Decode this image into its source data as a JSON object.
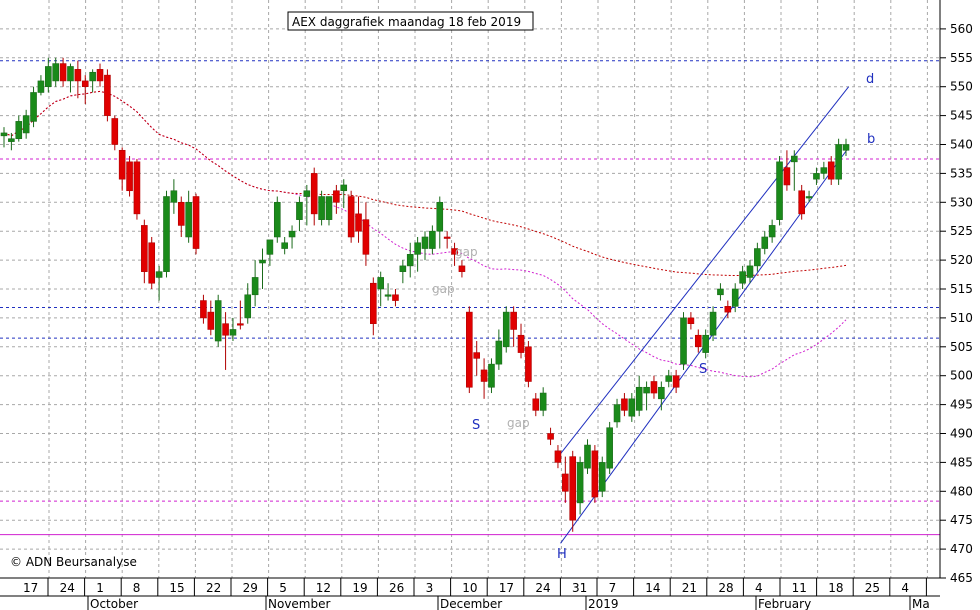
{
  "chart_data": {
    "type": "candlestick",
    "title": "AEX daggrafiek maandag 18 feb 2019",
    "copyright": "© ADN Beursanalyse",
    "ylim": [
      465,
      565
    ],
    "y_ticks": [
      465,
      470,
      475,
      480,
      485,
      490,
      495,
      500,
      505,
      510,
      515,
      520,
      525,
      530,
      535,
      540,
      545,
      550,
      555,
      560
    ],
    "x_day_ticks": [
      "17",
      "24",
      "1",
      "8",
      "15",
      "22",
      "29",
      "5",
      "12",
      "19",
      "26",
      "3",
      "10",
      "17",
      "24",
      "31",
      "7",
      "14",
      "21",
      "28",
      "4",
      "11",
      "18",
      "25",
      "4"
    ],
    "month_labels": [
      "October",
      "November",
      "December",
      "2019",
      "February",
      "Ma"
    ],
    "colors": {
      "up": "#1a8a1a",
      "down": "#e00000",
      "channel": "#1f2fbf",
      "ma_short": "#d020d0",
      "ma_long": "#c00000",
      "support": "#2030c0",
      "grid": "#a8a8a8"
    },
    "candles": [
      {
        "o": 541.5,
        "h": 543,
        "l": 539.5,
        "c": 542,
        "up": true
      },
      {
        "o": 540.5,
        "h": 542,
        "l": 539,
        "c": 541,
        "up": true
      },
      {
        "o": 541,
        "h": 545,
        "l": 540.5,
        "c": 544,
        "up": true
      },
      {
        "o": 542,
        "h": 546,
        "l": 541,
        "c": 545,
        "up": true
      },
      {
        "o": 544,
        "h": 550,
        "l": 543,
        "c": 549,
        "up": true
      },
      {
        "o": 549,
        "h": 552,
        "l": 548.5,
        "c": 551,
        "up": true
      },
      {
        "o": 550,
        "h": 555,
        "l": 549,
        "c": 553.5,
        "up": true
      },
      {
        "o": 551,
        "h": 555,
        "l": 550,
        "c": 554,
        "up": true
      },
      {
        "o": 554,
        "h": 555,
        "l": 550,
        "c": 551,
        "up": false
      },
      {
        "o": 551,
        "h": 554,
        "l": 549,
        "c": 553.5,
        "up": true
      },
      {
        "o": 553,
        "h": 554.5,
        "l": 548,
        "c": 551,
        "up": false
      },
      {
        "o": 551,
        "h": 552,
        "l": 547,
        "c": 550,
        "up": false
      },
      {
        "o": 551,
        "h": 553,
        "l": 549,
        "c": 552.5,
        "up": true
      },
      {
        "o": 553,
        "h": 554,
        "l": 550,
        "c": 551,
        "up": false
      },
      {
        "o": 552,
        "h": 553,
        "l": 544,
        "c": 545,
        "up": false
      },
      {
        "o": 544.5,
        "h": 545,
        "l": 539,
        "c": 540,
        "up": false
      },
      {
        "o": 539,
        "h": 539.5,
        "l": 532,
        "c": 534,
        "up": false
      },
      {
        "o": 537,
        "h": 538,
        "l": 531,
        "c": 532,
        "up": false
      },
      {
        "o": 537,
        "h": 537.5,
        "l": 527,
        "c": 528,
        "up": false
      },
      {
        "o": 526,
        "h": 527,
        "l": 516,
        "c": 518,
        "up": false
      },
      {
        "o": 523,
        "h": 524,
        "l": 515,
        "c": 516,
        "up": false
      },
      {
        "o": 518,
        "h": 519,
        "l": 513,
        "c": 517,
        "up": true
      },
      {
        "o": 518,
        "h": 532,
        "l": 517,
        "c": 531,
        "up": true
      },
      {
        "o": 530,
        "h": 534,
        "l": 528,
        "c": 532,
        "up": true
      },
      {
        "o": 530,
        "h": 531,
        "l": 524,
        "c": 526,
        "up": false
      },
      {
        "o": 524,
        "h": 532,
        "l": 523,
        "c": 530,
        "up": true
      },
      {
        "o": 531,
        "h": 531.5,
        "l": 521,
        "c": 522,
        "up": false
      },
      {
        "o": 513,
        "h": 514,
        "l": 509,
        "c": 510,
        "up": false
      },
      {
        "o": 511,
        "h": 513,
        "l": 507,
        "c": 508,
        "up": false
      },
      {
        "o": 506,
        "h": 514,
        "l": 505,
        "c": 513,
        "up": true
      },
      {
        "o": 509,
        "h": 511,
        "l": 501,
        "c": 507,
        "up": false
      },
      {
        "o": 507,
        "h": 510,
        "l": 506,
        "c": 508,
        "up": true
      },
      {
        "o": 509,
        "h": 513,
        "l": 508,
        "c": 509,
        "up": false
      },
      {
        "o": 514,
        "h": 516,
        "l": 509,
        "c": 510,
        "up": true
      },
      {
        "o": 514,
        "h": 520,
        "l": 512,
        "c": 517,
        "up": true
      },
      {
        "o": 520,
        "h": 522,
        "l": 515,
        "c": 519.5,
        "up": true
      },
      {
        "o": 521,
        "h": 523,
        "l": 519,
        "c": 523.5,
        "up": true
      },
      {
        "o": 524,
        "h": 531,
        "l": 523,
        "c": 530,
        "up": true
      },
      {
        "o": 522,
        "h": 524,
        "l": 521,
        "c": 523,
        "up": true
      },
      {
        "o": 524,
        "h": 526,
        "l": 522,
        "c": 525,
        "up": true
      },
      {
        "o": 527,
        "h": 531,
        "l": 525,
        "c": 530,
        "up": true
      },
      {
        "o": 531,
        "h": 533,
        "l": 526,
        "c": 532,
        "up": true
      },
      {
        "o": 535,
        "h": 536,
        "l": 526,
        "c": 528,
        "up": false
      },
      {
        "o": 531,
        "h": 532,
        "l": 526,
        "c": 527,
        "up": true
      },
      {
        "o": 527,
        "h": 530,
        "l": 526,
        "c": 531,
        "up": true
      },
      {
        "o": 532,
        "h": 533,
        "l": 528,
        "c": 530,
        "up": false
      },
      {
        "o": 532,
        "h": 534,
        "l": 529,
        "c": 533,
        "up": true
      },
      {
        "o": 531,
        "h": 532,
        "l": 523,
        "c": 524,
        "up": false
      },
      {
        "o": 528,
        "h": 531,
        "l": 523,
        "c": 525,
        "up": false
      },
      {
        "o": 527,
        "h": 530,
        "l": 519,
        "c": 521,
        "up": false
      },
      {
        "o": 516,
        "h": 517,
        "l": 507,
        "c": 509,
        "up": false
      },
      {
        "o": 515,
        "h": 518,
        "l": 512,
        "c": 517,
        "up": true
      },
      {
        "o": 514,
        "h": 516,
        "l": 513,
        "c": 514,
        "up": true
      },
      {
        "o": 513,
        "h": 515,
        "l": 512,
        "c": 514,
        "up": false
      },
      {
        "o": 518,
        "h": 520,
        "l": 516,
        "c": 519,
        "up": true
      },
      {
        "o": 519,
        "h": 523,
        "l": 517,
        "c": 521,
        "up": true
      },
      {
        "o": 521,
        "h": 524,
        "l": 518,
        "c": 523,
        "up": true
      },
      {
        "o": 524,
        "h": 525,
        "l": 520,
        "c": 522,
        "up": true
      },
      {
        "o": 522,
        "h": 526,
        "l": 521,
        "c": 525,
        "up": true
      },
      {
        "o": 530,
        "h": 531,
        "l": 522,
        "c": 525,
        "up": true
      },
      {
        "o": 524,
        "h": 525,
        "l": 522,
        "c": 524,
        "up": false
      },
      {
        "o": 522,
        "h": 523,
        "l": 519,
        "c": 521,
        "up": false
      },
      {
        "o": 519,
        "h": 520,
        "l": 517,
        "c": 518,
        "up": false
      },
      {
        "o": 511,
        "h": 512,
        "l": 497,
        "c": 498,
        "up": false
      },
      {
        "o": 504,
        "h": 506,
        "l": 500,
        "c": 503,
        "up": false
      },
      {
        "o": 499,
        "h": 503,
        "l": 496,
        "c": 501,
        "up": false
      },
      {
        "o": 498,
        "h": 503,
        "l": 497,
        "c": 502,
        "up": true
      },
      {
        "o": 502,
        "h": 508,
        "l": 501,
        "c": 506,
        "up": true
      },
      {
        "o": 505,
        "h": 512,
        "l": 504,
        "c": 511,
        "up": true
      },
      {
        "o": 511,
        "h": 512,
        "l": 505,
        "c": 508,
        "up": false
      },
      {
        "o": 507,
        "h": 509,
        "l": 503,
        "c": 504,
        "up": false
      },
      {
        "o": 505,
        "h": 506,
        "l": 498,
        "c": 499,
        "up": false
      },
      {
        "o": 496,
        "h": 497,
        "l": 493,
        "c": 494,
        "up": false
      },
      {
        "o": 494,
        "h": 498,
        "l": 493,
        "c": 497,
        "up": true
      },
      {
        "o": 490,
        "h": 491,
        "l": 488,
        "c": 489,
        "up": false
      },
      {
        "o": 487,
        "h": 488,
        "l": 484,
        "c": 485,
        "up": false
      },
      {
        "o": 483,
        "h": 486,
        "l": 478,
        "c": 480,
        "up": false
      },
      {
        "o": 486,
        "h": 487,
        "l": 473,
        "c": 475,
        "up": false
      },
      {
        "o": 478,
        "h": 486,
        "l": 476,
        "c": 485,
        "up": true
      },
      {
        "o": 484,
        "h": 489,
        "l": 483,
        "c": 488,
        "up": true
      },
      {
        "o": 487,
        "h": 488,
        "l": 478,
        "c": 479,
        "up": false
      },
      {
        "o": 480,
        "h": 486,
        "l": 479,
        "c": 485,
        "up": true
      },
      {
        "o": 484,
        "h": 492,
        "l": 483,
        "c": 491,
        "up": true
      },
      {
        "o": 492,
        "h": 496,
        "l": 491,
        "c": 495,
        "up": true
      },
      {
        "o": 496,
        "h": 497,
        "l": 493,
        "c": 494,
        "up": false
      },
      {
        "o": 493,
        "h": 497,
        "l": 492,
        "c": 496,
        "up": true
      },
      {
        "o": 494,
        "h": 500,
        "l": 493,
        "c": 498,
        "up": true
      },
      {
        "o": 497,
        "h": 499,
        "l": 494,
        "c": 498,
        "up": true
      },
      {
        "o": 499,
        "h": 500,
        "l": 496,
        "c": 497,
        "up": false
      },
      {
        "o": 496,
        "h": 499,
        "l": 494,
        "c": 498,
        "up": true
      },
      {
        "o": 499,
        "h": 501,
        "l": 498,
        "c": 500,
        "up": true
      },
      {
        "o": 500,
        "h": 501,
        "l": 497,
        "c": 498,
        "up": false
      },
      {
        "o": 502,
        "h": 511,
        "l": 501,
        "c": 510,
        "up": true
      },
      {
        "o": 510,
        "h": 511,
        "l": 508,
        "c": 509,
        "up": false
      },
      {
        "o": 507,
        "h": 508,
        "l": 504,
        "c": 505,
        "up": false
      },
      {
        "o": 504,
        "h": 508,
        "l": 503,
        "c": 507,
        "up": true
      },
      {
        "o": 507,
        "h": 512,
        "l": 506,
        "c": 511,
        "up": true
      },
      {
        "o": 514,
        "h": 516,
        "l": 513,
        "c": 515,
        "up": true
      },
      {
        "o": 511,
        "h": 513,
        "l": 510,
        "c": 512,
        "up": false
      },
      {
        "o": 512,
        "h": 516,
        "l": 511,
        "c": 515,
        "up": true
      },
      {
        "o": 516,
        "h": 519,
        "l": 515,
        "c": 518,
        "up": true
      },
      {
        "o": 517,
        "h": 520,
        "l": 516,
        "c": 519,
        "up": true
      },
      {
        "o": 519,
        "h": 523,
        "l": 518,
        "c": 522,
        "up": true
      },
      {
        "o": 522,
        "h": 525,
        "l": 521,
        "c": 524,
        "up": true
      },
      {
        "o": 524,
        "h": 527,
        "l": 523,
        "c": 526,
        "up": true
      },
      {
        "o": 527,
        "h": 538,
        "l": 526,
        "c": 537,
        "up": true
      },
      {
        "o": 536,
        "h": 539,
        "l": 532,
        "c": 533,
        "up": false
      },
      {
        "o": 537,
        "h": 539,
        "l": 532,
        "c": 538,
        "up": true
      },
      {
        "o": 532,
        "h": 533,
        "l": 527,
        "c": 528,
        "up": false
      },
      {
        "o": 531,
        "h": 532,
        "l": 530,
        "c": 531,
        "up": true
      },
      {
        "o": 534,
        "h": 536,
        "l": 533,
        "c": 535,
        "up": true
      },
      {
        "o": 535,
        "h": 537,
        "l": 534,
        "c": 536,
        "up": true
      },
      {
        "o": 537,
        "h": 538,
        "l": 533,
        "c": 534,
        "up": false
      },
      {
        "o": 534,
        "h": 541,
        "l": 533,
        "c": 540,
        "up": true
      },
      {
        "o": 539,
        "h": 541,
        "l": 538,
        "c": 540,
        "up": true
      }
    ],
    "horizontal_levels": [
      {
        "value": 554.5,
        "style": "dotted",
        "color": "support"
      },
      {
        "value": 537.5,
        "style": "dotted",
        "color": "ma_short"
      },
      {
        "value": 511.8,
        "style": "dotted",
        "color": "support"
      },
      {
        "value": 506.5,
        "style": "dotted",
        "color": "support"
      },
      {
        "value": 478.3,
        "style": "dotted",
        "color": "ma_short"
      },
      {
        "value": 472.5,
        "style": "solid",
        "color": "ma_short"
      }
    ],
    "channel_lines": [
      {
        "name": "d",
        "from": [
          0.572,
          486.5
        ],
        "to": [
          0.866,
          550
        ]
      },
      {
        "name": "b",
        "from": [
          0.572,
          471
        ],
        "to": [
          0.866,
          539.5
        ]
      }
    ],
    "annotations": [
      {
        "text": "H",
        "kind": "blue"
      },
      {
        "text": "S",
        "kind": "blue"
      },
      {
        "text": "S",
        "kind": "blue"
      },
      {
        "text": "d",
        "kind": "blue"
      },
      {
        "text": "b",
        "kind": "blue"
      },
      {
        "text": "gap",
        "kind": "gray"
      },
      {
        "text": "gap",
        "kind": "gray"
      },
      {
        "text": "gap",
        "kind": "gray"
      }
    ]
  }
}
